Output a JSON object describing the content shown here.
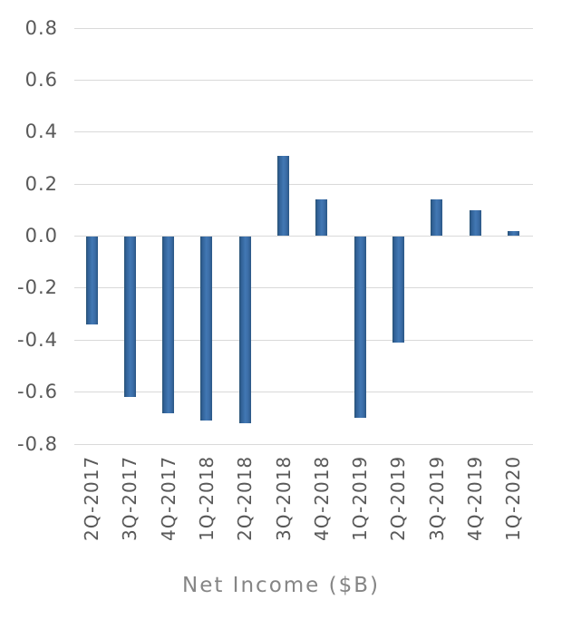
{
  "chart_data": {
    "type": "bar",
    "title": "",
    "xlabel": "Net Income ($B)",
    "ylabel": "",
    "categories": [
      "2Q-2017",
      "3Q-2017",
      "4Q-2017",
      "1Q-2018",
      "2Q-2018",
      "3Q-2018",
      "4Q-2018",
      "1Q-2019",
      "2Q-2019",
      "3Q-2019",
      "4Q-2019",
      "1Q-2020"
    ],
    "values": [
      -0.34,
      -0.62,
      -0.68,
      -0.71,
      -0.72,
      0.31,
      0.14,
      -0.7,
      -0.41,
      0.14,
      0.1,
      0.02
    ],
    "ylim": [
      -0.8,
      0.8
    ],
    "ytick_step": 0.2,
    "ytick_labels": [
      "0.8",
      "0.6",
      "0.4",
      "0.2",
      "0.0",
      "-0.2",
      "-0.4",
      "-0.6",
      "-0.8"
    ],
    "grid": true,
    "legend": false,
    "colors": {
      "bar_main": "#3a6ca6",
      "bar_gradient_edge": "#27506f",
      "bar_gradient_light": "#4278b4",
      "gridline": "#d9d9d9",
      "tick_label": "#595959",
      "axis_title": "#858585",
      "background": "#ffffff"
    }
  }
}
